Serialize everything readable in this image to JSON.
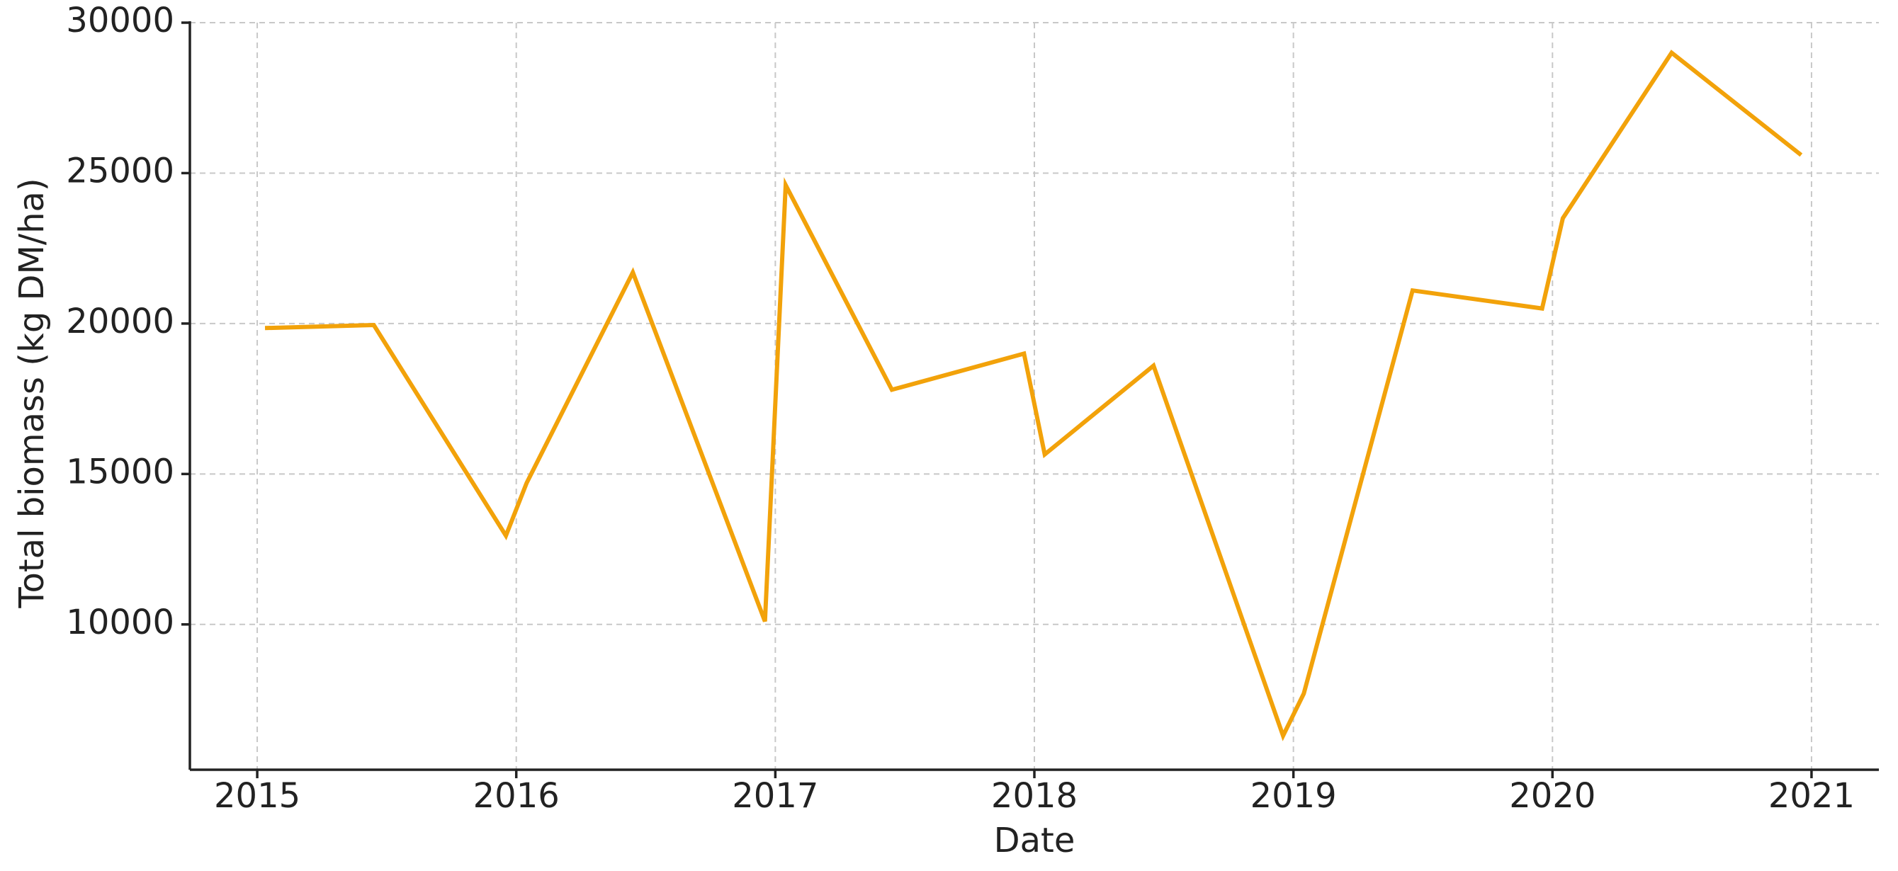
{
  "chart_data": {
    "type": "line",
    "x_label": "Date",
    "y_label": "Total biomass (kg DM/ha)",
    "x": [
      2015.03,
      2015.45,
      2015.96,
      2016.04,
      2016.45,
      2016.96,
      2017.04,
      2017.45,
      2017.96,
      2018.04,
      2018.46,
      2018.96,
      2019.04,
      2019.46,
      2019.96,
      2020.04,
      2020.46,
      2020.96
    ],
    "series": [
      {
        "name": "Total biomass",
        "color": "#f2a20a",
        "values": [
          19850,
          19950,
          12950,
          14700,
          21700,
          10100,
          24600,
          17800,
          19000,
          15650,
          18600,
          6300,
          7700,
          21100,
          20500,
          23500,
          29000,
          25600
        ]
      }
    ],
    "xlim": [
      2014.74,
      2021.26
    ],
    "xticks": [
      2015,
      2016,
      2017,
      2018,
      2019,
      2020,
      2021
    ],
    "ylim": [
      5170,
      30000
    ],
    "yticks": [
      10000,
      15000,
      20000,
      25000,
      30000
    ],
    "grid": true
  }
}
